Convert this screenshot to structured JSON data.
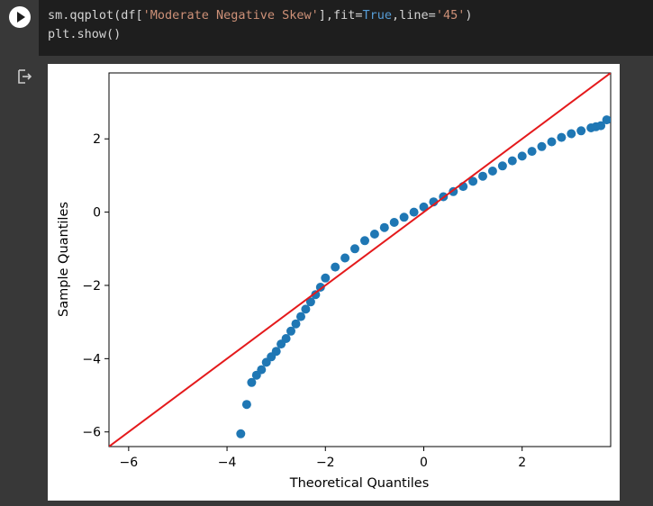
{
  "cell": {
    "code_lines": [
      {
        "parts": [
          {
            "text": "sm.qqplot(df[",
            "cls": ""
          },
          {
            "text": "'Moderate Negative Skew'",
            "cls": "tok-str"
          },
          {
            "text": "],fit=",
            "cls": ""
          },
          {
            "text": "True",
            "cls": "tok-kw"
          },
          {
            "text": ",line=",
            "cls": ""
          },
          {
            "text": "'45'",
            "cls": "tok-str"
          },
          {
            "text": ")",
            "cls": ""
          }
        ]
      },
      {
        "parts": [
          {
            "text": "plt.show()",
            "cls": ""
          }
        ]
      }
    ],
    "run_icon": "play-icon",
    "output_icon": "output-redirect-icon"
  },
  "colors": {
    "point": "#1f77b4",
    "ref_line": "#e41a1c",
    "editor_bg": "#1e1e1e",
    "page_bg": "#383838"
  },
  "chart_data": {
    "type": "scatter",
    "title": "",
    "xlabel": "Theoretical Quantiles",
    "ylabel": "Sample Quantiles",
    "xlim": [
      -6.4,
      3.8
    ],
    "ylim": [
      -6.4,
      3.8
    ],
    "xticks": [
      -6,
      -4,
      -2,
      0,
      2
    ],
    "yticks": [
      -6,
      -4,
      -2,
      0,
      2
    ],
    "tick_labels_x": [
      "−6",
      "−4",
      "−2",
      "0",
      "2"
    ],
    "tick_labels_y": [
      "−6",
      "−4",
      "−2",
      "0",
      "2"
    ],
    "reference_line": {
      "type": "45-degree",
      "points": [
        [
          -6.4,
          -6.4
        ],
        [
          3.8,
          3.8
        ]
      ]
    },
    "grid": false,
    "legend": "none",
    "series": [
      {
        "x": [
          -3.72,
          -3.6,
          -3.5,
          -3.4,
          -3.3,
          -3.2,
          -3.1,
          -3.0,
          -2.9,
          -2.8,
          -2.7,
          -2.6,
          -2.5,
          -2.4,
          -2.3,
          -2.2,
          -2.1,
          -2.0,
          -1.8,
          -1.6,
          -1.4,
          -1.2,
          -1.0,
          -0.8,
          -0.6,
          -0.4,
          -0.2,
          0.0,
          0.2,
          0.4,
          0.6,
          0.8,
          1.0,
          1.2,
          1.4,
          1.6,
          1.8,
          2.0,
          2.2,
          2.4,
          2.6,
          2.8,
          3.0,
          3.2,
          3.4,
          3.5,
          3.6,
          3.72
        ],
        "y": [
          -6.05,
          -5.25,
          -4.65,
          -4.45,
          -4.3,
          -4.1,
          -3.95,
          -3.8,
          -3.6,
          -3.45,
          -3.25,
          -3.05,
          -2.85,
          -2.65,
          -2.45,
          -2.25,
          -2.05,
          -1.8,
          -1.5,
          -1.25,
          -1.0,
          -0.78,
          -0.6,
          -0.42,
          -0.28,
          -0.14,
          0.0,
          0.14,
          0.28,
          0.42,
          0.56,
          0.7,
          0.84,
          0.98,
          1.12,
          1.26,
          1.4,
          1.53,
          1.66,
          1.79,
          1.92,
          2.04,
          2.14,
          2.22,
          2.3,
          2.33,
          2.36,
          2.52
        ]
      }
    ]
  }
}
